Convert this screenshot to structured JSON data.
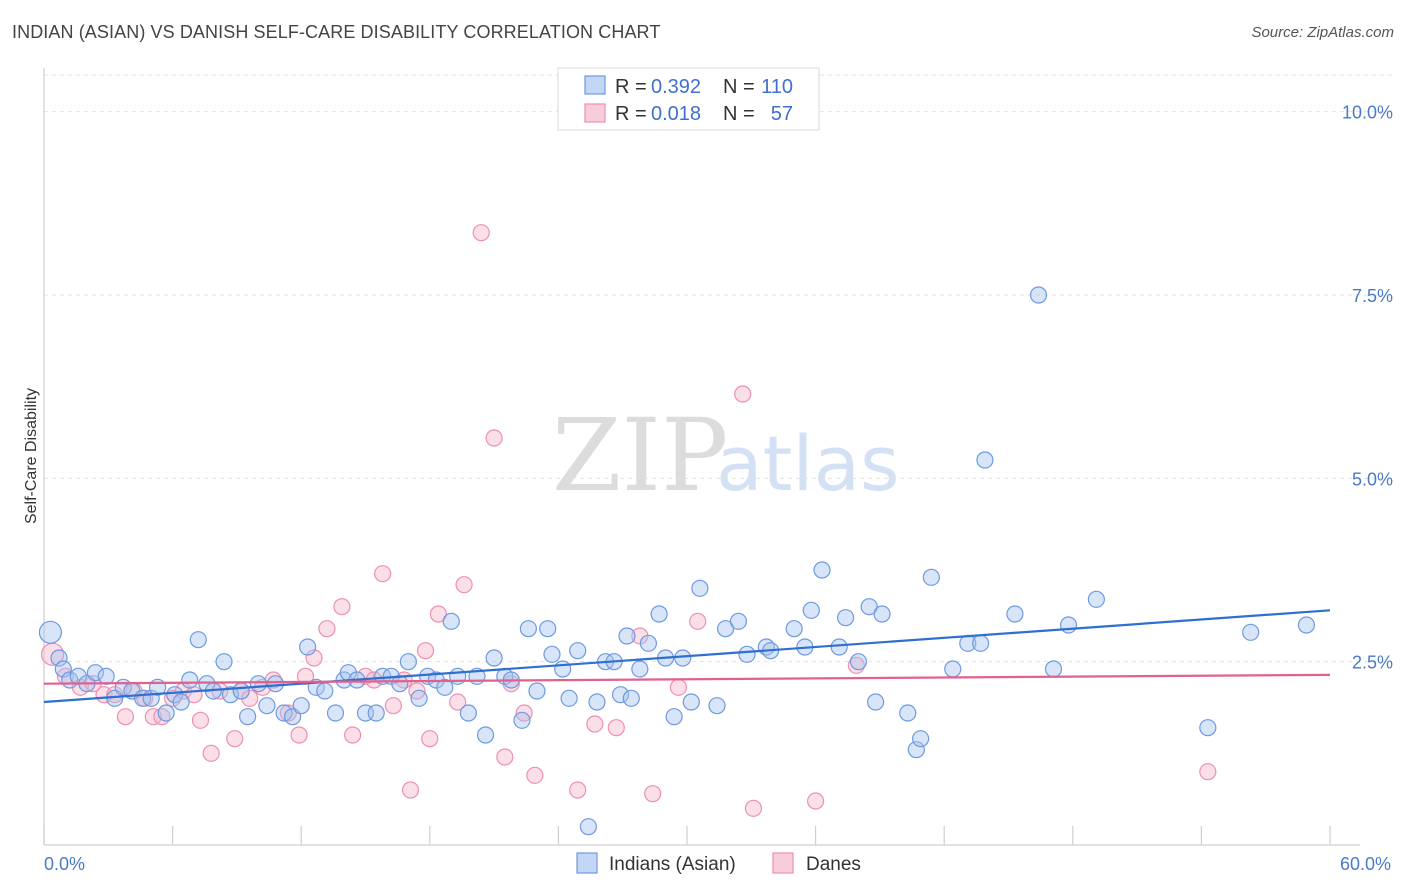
{
  "header": {
    "title": "INDIAN (ASIAN) VS DANISH SELF-CARE DISABILITY CORRELATION CHART",
    "source": "Source: ZipAtlas.com"
  },
  "watermark": {
    "zip": "ZIP",
    "atlas": "atlas"
  },
  "legend": {
    "rows": [
      {
        "r_label": "R =",
        "r_value": "0.392",
        "n_label": "N =",
        "n_value": "110",
        "color": "#6d9ae0"
      },
      {
        "r_label": "R =",
        "r_value": "0.018",
        "n_label": "N =",
        "n_value": "57",
        "color": "#ee8fb0"
      }
    ]
  },
  "chart_data": {
    "type": "scatter",
    "title": "INDIAN (ASIAN) VS DANISH SELF-CARE DISABILITY CORRELATION CHART",
    "xlabel": "",
    "ylabel": "Self-Care Disability",
    "xlim": [
      0,
      60
    ],
    "ylim": [
      0,
      10.5
    ],
    "x_tick_labels": [
      "0.0%",
      "60.0%"
    ],
    "y_ticks": [
      2.5,
      5.0,
      7.5,
      10.0
    ],
    "y_tick_labels": [
      "2.5%",
      "5.0%",
      "7.5%",
      "10.0%"
    ],
    "grid": true,
    "legend_position": "top-center",
    "series": [
      {
        "name": "Indians (Asian)",
        "color": "#6d9ae0",
        "fill": "#a9c4ee",
        "trend": {
          "x": [
            0,
            60
          ],
          "y": [
            1.95,
            3.2
          ],
          "color": "#2f6fd0"
        },
        "points": [
          [
            0.3,
            2.9
          ],
          [
            0.7,
            2.55
          ],
          [
            0.9,
            2.4
          ],
          [
            1.2,
            2.25
          ],
          [
            1.6,
            2.3
          ],
          [
            2.0,
            2.2
          ],
          [
            2.4,
            2.35
          ],
          [
            2.9,
            2.3
          ],
          [
            3.3,
            2.0
          ],
          [
            3.7,
            2.15
          ],
          [
            4.1,
            2.1
          ],
          [
            4.6,
            2.0
          ],
          [
            5.0,
            2.0
          ],
          [
            5.3,
            2.15
          ],
          [
            5.7,
            1.8
          ],
          [
            6.1,
            2.05
          ],
          [
            6.4,
            1.95
          ],
          [
            6.8,
            2.25
          ],
          [
            7.2,
            2.8
          ],
          [
            7.6,
            2.2
          ],
          [
            7.9,
            2.1
          ],
          [
            8.4,
            2.5
          ],
          [
            8.7,
            2.05
          ],
          [
            9.2,
            2.1
          ],
          [
            9.5,
            1.75
          ],
          [
            10.0,
            2.2
          ],
          [
            10.4,
            1.9
          ],
          [
            10.8,
            2.2
          ],
          [
            11.2,
            1.8
          ],
          [
            11.6,
            1.75
          ],
          [
            12.0,
            1.9
          ],
          [
            12.3,
            2.7
          ],
          [
            12.7,
            2.15
          ],
          [
            13.1,
            2.1
          ],
          [
            13.6,
            1.8
          ],
          [
            14.0,
            2.25
          ],
          [
            14.2,
            2.35
          ],
          [
            14.6,
            2.25
          ],
          [
            15.0,
            1.8
          ],
          [
            15.5,
            1.8
          ],
          [
            15.8,
            2.3
          ],
          [
            16.2,
            2.3
          ],
          [
            16.6,
            2.2
          ],
          [
            17.0,
            2.5
          ],
          [
            17.5,
            2.0
          ],
          [
            17.9,
            2.3
          ],
          [
            18.3,
            2.25
          ],
          [
            18.7,
            2.15
          ],
          [
            19.0,
            3.05
          ],
          [
            19.3,
            2.3
          ],
          [
            19.8,
            1.8
          ],
          [
            20.2,
            2.3
          ],
          [
            20.6,
            1.5
          ],
          [
            21.0,
            2.55
          ],
          [
            21.5,
            2.3
          ],
          [
            21.8,
            2.25
          ],
          [
            22.3,
            1.7
          ],
          [
            22.6,
            2.95
          ],
          [
            23.0,
            2.1
          ],
          [
            23.5,
            2.95
          ],
          [
            23.7,
            2.6
          ],
          [
            24.2,
            2.4
          ],
          [
            24.5,
            2.0
          ],
          [
            24.9,
            2.65
          ],
          [
            25.4,
            0.25
          ],
          [
            25.8,
            1.95
          ],
          [
            26.2,
            2.5
          ],
          [
            26.6,
            2.5
          ],
          [
            26.9,
            2.05
          ],
          [
            27.2,
            2.85
          ],
          [
            27.4,
            2.0
          ],
          [
            27.8,
            2.4
          ],
          [
            28.2,
            2.75
          ],
          [
            28.7,
            3.15
          ],
          [
            29.0,
            2.55
          ],
          [
            29.4,
            1.75
          ],
          [
            29.8,
            2.55
          ],
          [
            30.2,
            1.95
          ],
          [
            30.6,
            3.5
          ],
          [
            31.4,
            1.9
          ],
          [
            31.8,
            2.95
          ],
          [
            32.4,
            3.05
          ],
          [
            32.8,
            2.6
          ],
          [
            33.7,
            2.7
          ],
          [
            33.9,
            2.65
          ],
          [
            35.0,
            2.95
          ],
          [
            35.5,
            2.7
          ],
          [
            35.8,
            3.2
          ],
          [
            36.3,
            3.75
          ],
          [
            37.1,
            2.7
          ],
          [
            37.4,
            3.1
          ],
          [
            38.0,
            2.5
          ],
          [
            38.5,
            3.25
          ],
          [
            38.8,
            1.95
          ],
          [
            39.1,
            3.15
          ],
          [
            40.3,
            1.8
          ],
          [
            40.7,
            1.3
          ],
          [
            40.9,
            1.45
          ],
          [
            41.4,
            3.65
          ],
          [
            42.4,
            2.4
          ],
          [
            43.1,
            2.75
          ],
          [
            43.7,
            2.75
          ],
          [
            43.9,
            5.25
          ],
          [
            45.3,
            3.15
          ],
          [
            46.4,
            7.5
          ],
          [
            47.1,
            2.4
          ],
          [
            47.8,
            3.0
          ],
          [
            49.1,
            3.35
          ],
          [
            54.3,
            1.6
          ],
          [
            56.3,
            2.9
          ],
          [
            58.9,
            3.0
          ]
        ]
      },
      {
        "name": "Danes",
        "color": "#ee8fb0",
        "fill": "#f5b8cc",
        "trend": {
          "x": [
            0,
            60
          ],
          "y": [
            2.2,
            2.32
          ],
          "color": "#e2608e"
        },
        "points": [
          [
            0.4,
            2.6
          ],
          [
            1.0,
            2.3
          ],
          [
            1.7,
            2.15
          ],
          [
            2.3,
            2.2
          ],
          [
            2.8,
            2.05
          ],
          [
            3.3,
            2.05
          ],
          [
            3.8,
            1.75
          ],
          [
            4.2,
            2.1
          ],
          [
            4.7,
            2.0
          ],
          [
            5.1,
            1.75
          ],
          [
            5.5,
            1.75
          ],
          [
            6.0,
            2.0
          ],
          [
            6.5,
            2.1
          ],
          [
            7.0,
            2.05
          ],
          [
            7.3,
            1.7
          ],
          [
            7.8,
            1.25
          ],
          [
            8.2,
            2.1
          ],
          [
            8.9,
            1.45
          ],
          [
            9.2,
            2.1
          ],
          [
            9.6,
            2.0
          ],
          [
            10.2,
            2.15
          ],
          [
            10.7,
            2.25
          ],
          [
            11.4,
            1.8
          ],
          [
            11.9,
            1.5
          ],
          [
            12.2,
            2.3
          ],
          [
            12.6,
            2.55
          ],
          [
            13.2,
            2.95
          ],
          [
            13.9,
            3.25
          ],
          [
            14.4,
            1.5
          ],
          [
            15.0,
            2.3
          ],
          [
            15.4,
            2.25
          ],
          [
            15.8,
            3.7
          ],
          [
            16.3,
            1.9
          ],
          [
            16.8,
            2.25
          ],
          [
            17.1,
            0.75
          ],
          [
            17.4,
            2.1
          ],
          [
            17.8,
            2.65
          ],
          [
            18.0,
            1.45
          ],
          [
            18.4,
            3.15
          ],
          [
            19.3,
            1.95
          ],
          [
            19.6,
            3.55
          ],
          [
            20.4,
            8.35
          ],
          [
            21.0,
            5.55
          ],
          [
            21.5,
            1.2
          ],
          [
            21.8,
            2.2
          ],
          [
            22.4,
            1.8
          ],
          [
            22.9,
            0.95
          ],
          [
            24.9,
            0.75
          ],
          [
            25.7,
            1.65
          ],
          [
            26.7,
            1.6
          ],
          [
            27.8,
            2.85
          ],
          [
            28.4,
            0.7
          ],
          [
            29.6,
            2.15
          ],
          [
            30.5,
            3.05
          ],
          [
            32.6,
            6.15
          ],
          [
            33.1,
            0.5
          ],
          [
            36.0,
            0.6
          ],
          [
            37.9,
            2.45
          ],
          [
            54.3,
            1.0
          ]
        ]
      }
    ]
  }
}
